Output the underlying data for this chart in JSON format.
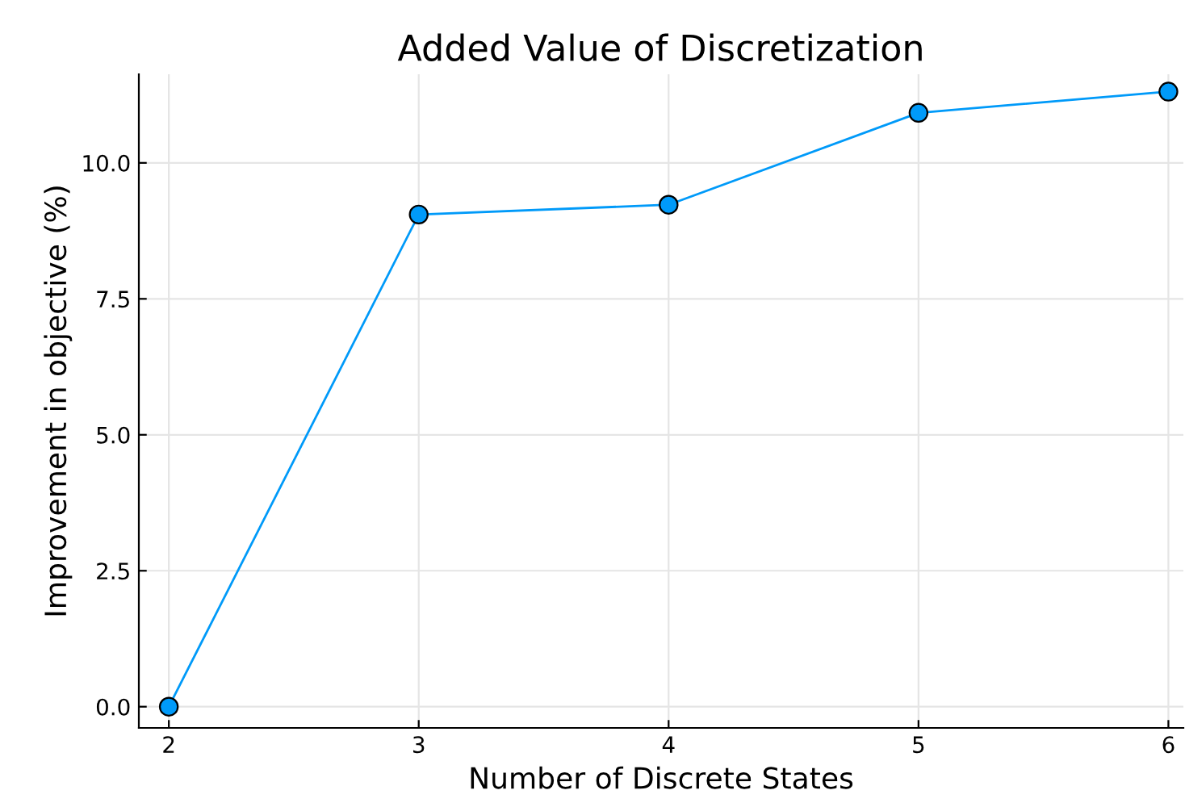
{
  "chart_data": {
    "type": "line",
    "title": "Added Value of Discretization",
    "xlabel": "Number of Discrete States",
    "ylabel": "Improvement in objective (%)",
    "x": [
      2,
      3,
      4,
      5,
      6
    ],
    "series": [
      {
        "color": "#009af9",
        "values": [
          0.0,
          9.05,
          9.23,
          10.92,
          11.31
        ]
      }
    ],
    "xlim": [
      1.88,
      6.06
    ],
    "ylim": [
      -0.39,
      11.63
    ],
    "xticks": [
      2,
      3,
      4,
      5,
      6
    ],
    "yticks": [
      {
        "value": 0,
        "label": "0.0"
      },
      {
        "value": 2.5,
        "label": "2.5"
      },
      {
        "value": 5,
        "label": "5.0"
      },
      {
        "value": 7.5,
        "label": "7.5"
      },
      {
        "value": 10,
        "label": "10.0"
      }
    ],
    "grid": true,
    "marker": "circle",
    "line_style": "solid"
  }
}
